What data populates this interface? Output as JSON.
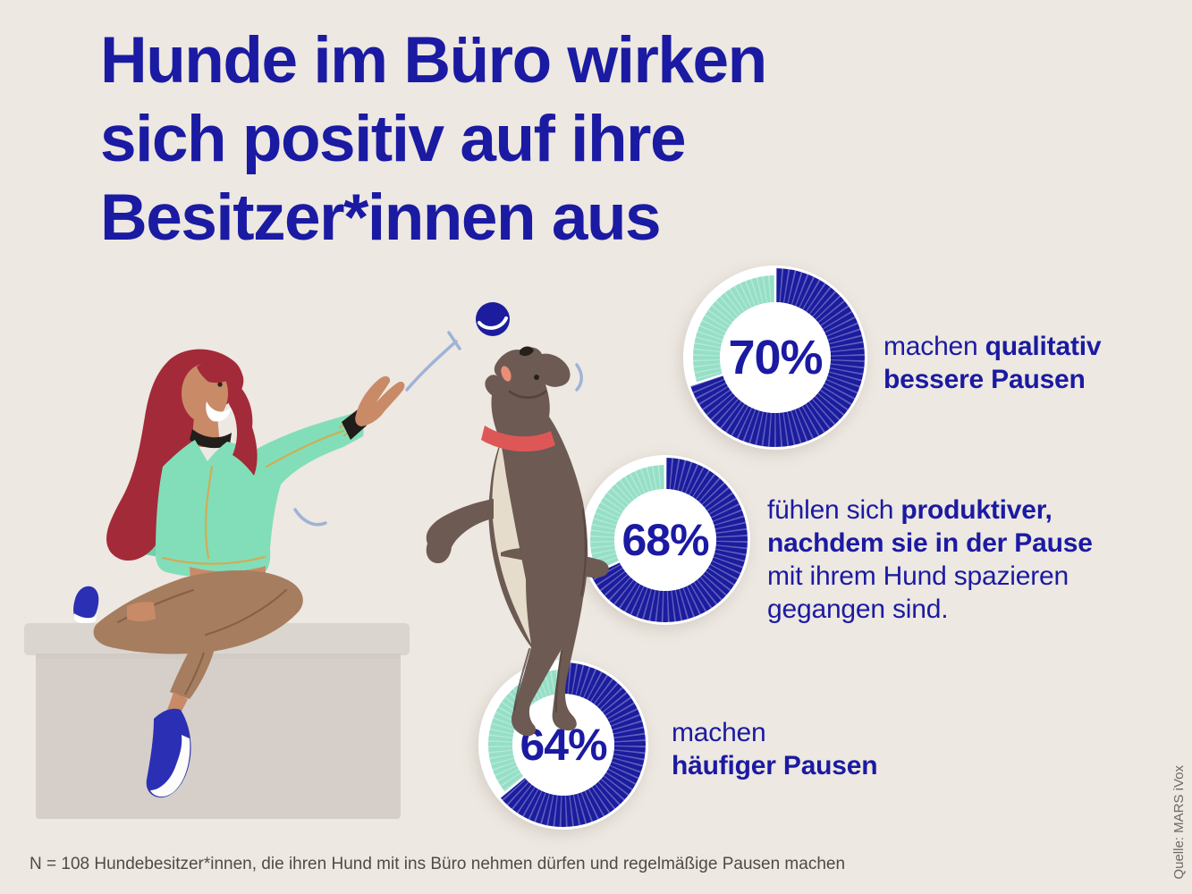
{
  "background": "#EDE8E1",
  "title": {
    "text": "Hunde im Büro wirken\nsich positiv auf ihre\nBesitzer*innen aus",
    "color": "#1B1AA2"
  },
  "chart_data": {
    "type": "pie",
    "variant": "donut",
    "unit": "percent",
    "grid": false,
    "legend_position": "text-beside-each-donut",
    "colors": {
      "value_arc": "#1B1C9E",
      "remainder_arc": "#95DFC6",
      "hole": "#FFFFFF",
      "value_text": "#1B1AA2",
      "rim": "#FFFFFF"
    },
    "donuts": [
      {
        "value": 70,
        "remainder": 30,
        "display": "70%",
        "description": "machen qualitativ bessere Pausen"
      },
      {
        "value": 68,
        "remainder": 32,
        "display": "68%",
        "description": "fühlen sich produktiver, nachdem sie in der Pause mit ihrem Hund spazieren gegangen sind."
      },
      {
        "value": 64,
        "remainder": 36,
        "display": "64%",
        "description": "machen häufiger Pausen"
      }
    ]
  },
  "stats": [
    {
      "segments": [
        {
          "text": "machen ",
          "bold": false
        },
        {
          "text": "qualitativ\nbessere Pausen",
          "bold": true
        }
      ]
    },
    {
      "segments": [
        {
          "text": "fühlen sich ",
          "bold": false
        },
        {
          "text": "produktiver,\nnachdem sie in der Pause",
          "bold": true
        },
        {
          "text": "\nmit ihrem Hund spazieren\ngegangen sind.",
          "bold": false
        }
      ]
    },
    {
      "segments": [
        {
          "text": "machen\n",
          "bold": false
        },
        {
          "text": "häufiger Pausen",
          "bold": true
        }
      ]
    }
  ],
  "footnote": "N = 108 Hundebesitzer*innen, die ihren Hund mit ins Büro nehmen dürfen und regelmäßige Pausen machen",
  "source": "Quelle: MARS iVox",
  "illustration": {
    "description": "Frau mit rotem Haar sitzt auf einer grauen Box und wirft einen blauen Ball für einen springenden Hund mit rotem Halsband"
  }
}
